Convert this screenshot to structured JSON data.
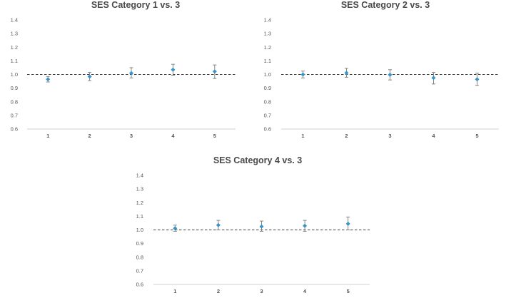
{
  "chart_data": [
    {
      "type": "scatter",
      "title": "SES Category 1 vs. 3",
      "categories": [
        "1",
        "2",
        "3",
        "4",
        "5"
      ],
      "values": [
        0.965,
        0.985,
        1.01,
        1.035,
        1.022
      ],
      "lower": [
        0.945,
        0.955,
        0.975,
        0.995,
        0.97
      ],
      "upper": [
        0.985,
        1.015,
        1.05,
        1.075,
        1.07
      ],
      "reference_line": 1.0,
      "yticks": [
        "0.6",
        "0.7",
        "0.8",
        "0.9",
        "1.0",
        "1.1",
        "1.2",
        "1.3",
        "1.4"
      ],
      "ylim": [
        0.6,
        1.4
      ],
      "point_color": "#3a94c9",
      "error_color": "#7a7a7a",
      "reference_color": "#404040",
      "xlabel": "",
      "ylabel": ""
    },
    {
      "type": "scatter",
      "title": "SES Category 2 vs. 3",
      "categories": [
        "1",
        "2",
        "3",
        "4",
        "5"
      ],
      "values": [
        1.0,
        1.012,
        0.998,
        0.975,
        0.965
      ],
      "lower": [
        0.975,
        0.98,
        0.96,
        0.93,
        0.92
      ],
      "upper": [
        1.025,
        1.045,
        1.035,
        1.015,
        1.01
      ],
      "reference_line": 1.0,
      "yticks": [
        "0.6",
        "0.7",
        "0.8",
        "0.9",
        "1.0",
        "1.1",
        "1.2",
        "1.3",
        "1.4"
      ],
      "ylim": [
        0.6,
        1.4
      ],
      "point_color": "#3a94c9",
      "error_color": "#7a7a7a",
      "reference_color": "#404040",
      "xlabel": "",
      "ylabel": ""
    },
    {
      "type": "scatter",
      "title": "SES Category 4 vs. 3",
      "categories": [
        "1",
        "2",
        "3",
        "4",
        "5"
      ],
      "values": [
        1.012,
        1.035,
        1.025,
        1.03,
        1.045
      ],
      "lower": [
        0.99,
        1.0,
        0.99,
        0.99,
        1.0
      ],
      "upper": [
        1.035,
        1.07,
        1.065,
        1.07,
        1.095
      ],
      "reference_line": 1.0,
      "yticks": [
        "0.6",
        "0.7",
        "0.8",
        "0.9",
        "1.0",
        "1.1",
        "1.2",
        "1.3",
        "1.4"
      ],
      "ylim": [
        0.6,
        1.4
      ],
      "point_color": "#3a94c9",
      "error_color": "#7a7a7a",
      "reference_color": "#404040",
      "xlabel": "",
      "ylabel": ""
    }
  ]
}
